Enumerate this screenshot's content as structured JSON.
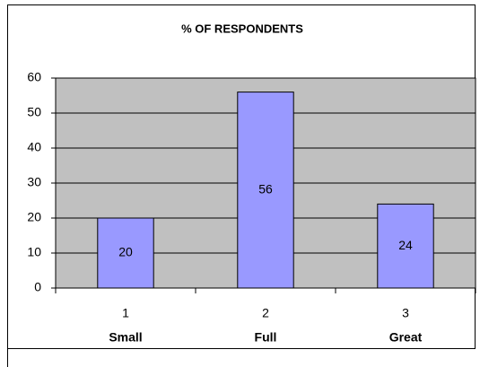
{
  "chart_data": {
    "type": "bar",
    "title": "% OF RESPONDENTS",
    "categories": [
      "1",
      "2",
      "3"
    ],
    "category_names": [
      "Small",
      "Full",
      "Great"
    ],
    "values": [
      20,
      56,
      24
    ],
    "color": "#9999ff",
    "ylim": [
      0,
      60
    ],
    "yticks": [
      0,
      10,
      20,
      30,
      40,
      50,
      60
    ],
    "grid": true,
    "plot_background": "#c0c0c0"
  }
}
